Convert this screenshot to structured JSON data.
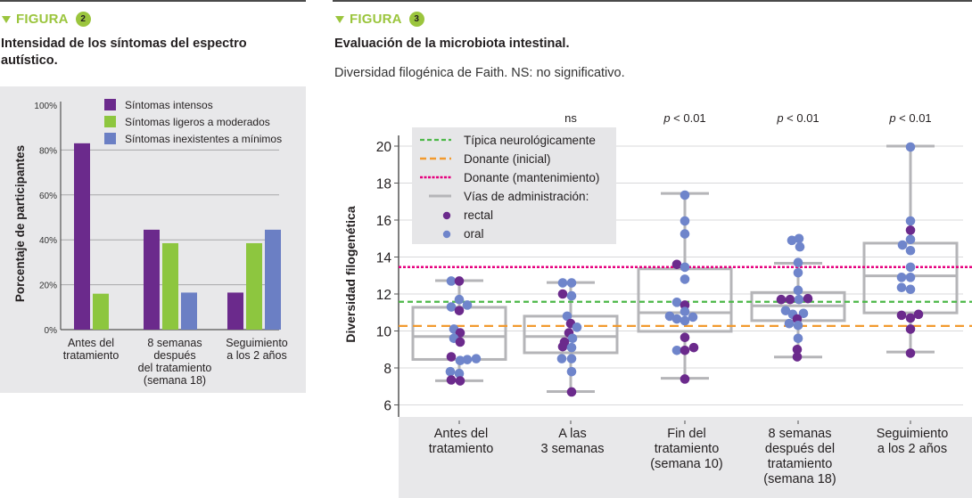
{
  "figure2": {
    "label": "FIGURA",
    "number": "2",
    "title": "Intensidad de los síntomas del espectro autístico."
  },
  "figure3": {
    "label": "FIGURA",
    "number": "3",
    "title": "Evaluación de la microbiota intestinal.",
    "subtitle": "Diversidad filogénica de Faith. NS: no significativo."
  },
  "colors": {
    "accent": "#9bc53d",
    "purple": "#6b2a8c",
    "green": "#8dc63f",
    "blue": "#6b7fc4",
    "rectal": "#6b2a8c",
    "oral": "#6f85cb",
    "typical": "#4cb848",
    "donor_initial": "#f29a2e",
    "donor_maintenance": "#e6007e",
    "box": "#b5b5b8"
  },
  "chart_data": [
    {
      "type": "bar",
      "title": "Intensidad de los síntomas del espectro autístico.",
      "xlabel": "",
      "ylabel": "Porcentaje de participantes",
      "ylim": [
        0,
        100
      ],
      "yticks": [
        "0%",
        "20%",
        "40%",
        "60%",
        "80%",
        "100%"
      ],
      "ytick_values": [
        0,
        20,
        40,
        60,
        80,
        100
      ],
      "grid": true,
      "legend_position": "top-right",
      "categories": [
        [
          "Antes del",
          "tratamiento"
        ],
        [
          "8 semanas",
          "después",
          "del tratamiento",
          "(semana 18)"
        ],
        [
          "Seguimiento",
          "a los 2 años"
        ]
      ],
      "series": [
        {
          "name": "Síntomas intensos",
          "color": "#6b2a8c",
          "values": [
            83,
            44.5,
            16.5
          ]
        },
        {
          "name": "Síntomas ligeros a moderados",
          "color": "#8dc63f",
          "values": [
            16,
            38.5,
            38.5
          ]
        },
        {
          "name": "Síntomas inexistentes a mínimos",
          "color": "#6b7fc4",
          "values": [
            0,
            16.5,
            44.5
          ]
        }
      ]
    },
    {
      "type": "box",
      "title": "Evaluación de la microbiota intestinal.",
      "subtitle": "Diversidad filogénica de Faith. NS: no significativo.",
      "xlabel": "",
      "ylabel": "Diversidad filogenética",
      "ylim": [
        5.5,
        20.7
      ],
      "yticks": [
        "6",
        "8",
        "10",
        "12",
        "14",
        "16",
        "18",
        "20"
      ],
      "ytick_values": [
        6,
        8,
        10,
        12,
        14,
        16,
        18,
        20
      ],
      "grid": true,
      "legend_position": "top-left",
      "legend": [
        {
          "label": "Típica neurológicamente",
          "kind": "line-dashed-small",
          "color": "#4cb848"
        },
        {
          "label": "Donante (inicial)",
          "kind": "line-dashed-long",
          "color": "#f29a2e"
        },
        {
          "label": "Donante (mantenimiento)",
          "kind": "line-dotted",
          "color": "#e6007e"
        },
        {
          "label": "Vías de administración:",
          "kind": "line-solid",
          "color": "#b5b5b8"
        },
        {
          "label": "rectal",
          "kind": "dot",
          "color": "#6b2a8c"
        },
        {
          "label": "oral",
          "kind": "dot",
          "color": "#6f85cb"
        }
      ],
      "reference_lines": [
        {
          "name": "Típica neurológicamente",
          "value": 11.58
        },
        {
          "name": "Donante (inicial)",
          "value": 10.27
        },
        {
          "name": "Donante (mantenimiento)",
          "value": 13.46
        }
      ],
      "significance": [
        "",
        "ns",
        "p < 0.01",
        "p < 0.01",
        "p < 0.01"
      ],
      "categories": [
        [
          "Antes del",
          "tratamiento"
        ],
        [
          "A las",
          "3 semanas"
        ],
        [
          "Fin del",
          "tratamiento",
          "(semana 10)"
        ],
        [
          "8 semanas",
          "después del",
          "tratamiento",
          "(semana 18)"
        ],
        [
          "Seguimiento",
          "a los 2 años"
        ]
      ],
      "boxes": [
        {
          "whisker_low": 7.31,
          "q1": 8.46,
          "median": 9.7,
          "q3": 11.28,
          "whisker_high": 12.72
        },
        {
          "whisker_low": 6.72,
          "q1": 8.82,
          "median": 9.7,
          "q3": 10.8,
          "whisker_high": 12.62
        },
        {
          "whisker_low": 7.44,
          "q1": 9.98,
          "median": 10.99,
          "q3": 13.36,
          "whisker_high": 17.44
        },
        {
          "whisker_low": 8.59,
          "q1": 10.56,
          "median": 11.36,
          "q3": 12.08,
          "whisker_high": 13.66
        },
        {
          "whisker_low": 8.86,
          "q1": 10.98,
          "median": 12.98,
          "q3": 14.75,
          "whisker_high": 20.0
        }
      ],
      "points": [
        [
          {
            "v": 12.7,
            "r": "oral",
            "o": -9
          },
          {
            "v": 12.7,
            "r": "rectal",
            "o": 0
          },
          {
            "v": 11.7,
            "r": "oral",
            "o": 0
          },
          {
            "v": 11.3,
            "r": "oral",
            "o": -9
          },
          {
            "v": 11.4,
            "r": "oral",
            "o": 9
          },
          {
            "v": 11.1,
            "r": "rectal",
            "o": 0
          },
          {
            "v": 10.1,
            "r": "oral",
            "o": -6
          },
          {
            "v": 9.9,
            "r": "rectal",
            "o": 1
          },
          {
            "v": 9.6,
            "r": "oral",
            "o": -6
          },
          {
            "v": 9.4,
            "r": "rectal",
            "o": 1
          },
          {
            "v": 8.6,
            "r": "rectal",
            "o": -9
          },
          {
            "v": 8.4,
            "r": "oral",
            "o": 1
          },
          {
            "v": 8.45,
            "r": "oral",
            "o": 9
          },
          {
            "v": 8.5,
            "r": "oral",
            "o": 19
          },
          {
            "v": 7.8,
            "r": "oral",
            "o": -10
          },
          {
            "v": 7.7,
            "r": "oral",
            "o": 0
          },
          {
            "v": 7.35,
            "r": "rectal",
            "o": -9
          },
          {
            "v": 7.3,
            "r": "rectal",
            "o": 1
          }
        ],
        [
          {
            "v": 12.6,
            "r": "oral",
            "o": -9
          },
          {
            "v": 12.6,
            "r": "oral",
            "o": 1
          },
          {
            "v": 12.0,
            "r": "rectal",
            "o": -9
          },
          {
            "v": 11.9,
            "r": "oral",
            "o": 1
          },
          {
            "v": 10.8,
            "r": "oral",
            "o": -4
          },
          {
            "v": 10.4,
            "r": "rectal",
            "o": 0
          },
          {
            "v": 10.2,
            "r": "oral",
            "o": 7
          },
          {
            "v": 9.9,
            "r": "rectal",
            "o": -2
          },
          {
            "v": 9.6,
            "r": "oral",
            "o": 2
          },
          {
            "v": 9.4,
            "r": "rectal",
            "o": -7
          },
          {
            "v": 9.15,
            "r": "rectal",
            "o": -9
          },
          {
            "v": 9.1,
            "r": "oral",
            "o": 1
          },
          {
            "v": 8.5,
            "r": "oral",
            "o": -10
          },
          {
            "v": 8.5,
            "r": "oral",
            "o": 1
          },
          {
            "v": 7.8,
            "r": "oral",
            "o": 1
          },
          {
            "v": 6.7,
            "r": "rectal",
            "o": 1
          }
        ],
        [
          {
            "v": 17.35,
            "r": "oral",
            "o": 0
          },
          {
            "v": 15.95,
            "r": "oral",
            "o": 0
          },
          {
            "v": 15.25,
            "r": "oral",
            "o": 0
          },
          {
            "v": 13.6,
            "r": "rectal",
            "o": -9
          },
          {
            "v": 13.45,
            "r": "oral",
            "o": 0
          },
          {
            "v": 12.8,
            "r": "oral",
            "o": 0
          },
          {
            "v": 11.55,
            "r": "oral",
            "o": -9
          },
          {
            "v": 11.4,
            "r": "rectal",
            "o": 0
          },
          {
            "v": 11.05,
            "r": "oral",
            "o": 0
          },
          {
            "v": 10.8,
            "r": "oral",
            "o": -17
          },
          {
            "v": 10.65,
            "r": "oral",
            "o": -9
          },
          {
            "v": 10.55,
            "r": "oral",
            "o": 0
          },
          {
            "v": 10.75,
            "r": "oral",
            "o": 9
          },
          {
            "v": 9.65,
            "r": "rectal",
            "o": 0
          },
          {
            "v": 8.95,
            "r": "oral",
            "o": -9
          },
          {
            "v": 8.95,
            "r": "rectal",
            "o": 0
          },
          {
            "v": 9.1,
            "r": "rectal",
            "o": 10
          },
          {
            "v": 7.4,
            "r": "rectal",
            "o": 0
          }
        ],
        [
          {
            "v": 14.9,
            "r": "oral",
            "o": -7
          },
          {
            "v": 15.0,
            "r": "oral",
            "o": 1
          },
          {
            "v": 14.55,
            "r": "oral",
            "o": 2
          },
          {
            "v": 13.7,
            "r": "oral",
            "o": 0
          },
          {
            "v": 13.15,
            "r": "oral",
            "o": 0
          },
          {
            "v": 12.2,
            "r": "oral",
            "o": 0
          },
          {
            "v": 11.7,
            "r": "rectal",
            "o": -19
          },
          {
            "v": 11.7,
            "r": "rectal",
            "o": -9
          },
          {
            "v": 11.7,
            "r": "oral",
            "o": 1
          },
          {
            "v": 11.75,
            "r": "rectal",
            "o": 11
          },
          {
            "v": 11.1,
            "r": "oral",
            "o": -14
          },
          {
            "v": 10.9,
            "r": "oral",
            "o": -6
          },
          {
            "v": 10.95,
            "r": "oral",
            "o": 6
          },
          {
            "v": 10.65,
            "r": "rectal",
            "o": -1
          },
          {
            "v": 10.4,
            "r": "oral",
            "o": -10
          },
          {
            "v": 10.3,
            "r": "oral",
            "o": 0
          },
          {
            "v": 9.6,
            "r": "oral",
            "o": 0
          },
          {
            "v": 9.0,
            "r": "rectal",
            "o": -1
          },
          {
            "v": 8.6,
            "r": "rectal",
            "o": -1
          }
        ],
        [
          {
            "v": 19.95,
            "r": "oral",
            "o": 0
          },
          {
            "v": 15.95,
            "r": "oral",
            "o": 0
          },
          {
            "v": 15.45,
            "r": "rectal",
            "o": 0
          },
          {
            "v": 14.95,
            "r": "oral",
            "o": 0
          },
          {
            "v": 14.65,
            "r": "oral",
            "o": -9
          },
          {
            "v": 14.35,
            "r": "oral",
            "o": 0
          },
          {
            "v": 13.45,
            "r": "oral",
            "o": 0
          },
          {
            "v": 12.9,
            "r": "oral",
            "o": -10
          },
          {
            "v": 12.9,
            "r": "oral",
            "o": 0
          },
          {
            "v": 12.35,
            "r": "oral",
            "o": -10
          },
          {
            "v": 12.25,
            "r": "oral",
            "o": 0
          },
          {
            "v": 10.85,
            "r": "rectal",
            "o": -10
          },
          {
            "v": 10.7,
            "r": "rectal",
            "o": 0
          },
          {
            "v": 10.9,
            "r": "rectal",
            "o": 9
          },
          {
            "v": 10.1,
            "r": "rectal",
            "o": 0
          },
          {
            "v": 8.8,
            "r": "rectal",
            "o": 0
          }
        ]
      ]
    }
  ]
}
